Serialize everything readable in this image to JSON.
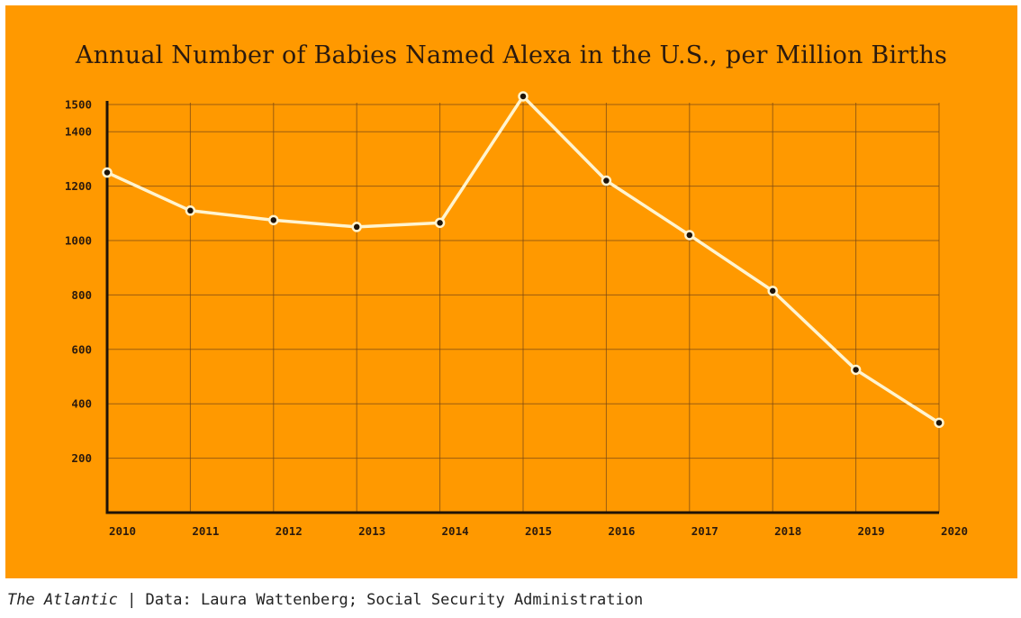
{
  "chart_data": {
    "type": "line",
    "title": "Annual Number of Babies Named Alexa in the U.S., per Million Births",
    "xlabel": "",
    "ylabel": "",
    "x": [
      "2010",
      "2011",
      "2012",
      "2013",
      "2014",
      "2015",
      "2016",
      "2017",
      "2018",
      "2019",
      "2020"
    ],
    "series": [
      {
        "values": [
          1250,
          1110,
          1075,
          1050,
          1065,
          1530,
          1220,
          1020,
          815,
          525,
          330
        ]
      }
    ],
    "ylim": [
      0,
      1500
    ],
    "yticks": [
      200,
      400,
      600,
      800,
      1000,
      1200,
      1400,
      1500
    ],
    "grid": true,
    "colors": {
      "background": "#ff9900",
      "line": "#fff4d0",
      "marker": "#1e1308",
      "axis": "#1e1308"
    }
  },
  "source": {
    "publication": "The Atlantic",
    "separator": " | ",
    "text": "Data: Laura Wattenberg; Social Security Administration"
  }
}
